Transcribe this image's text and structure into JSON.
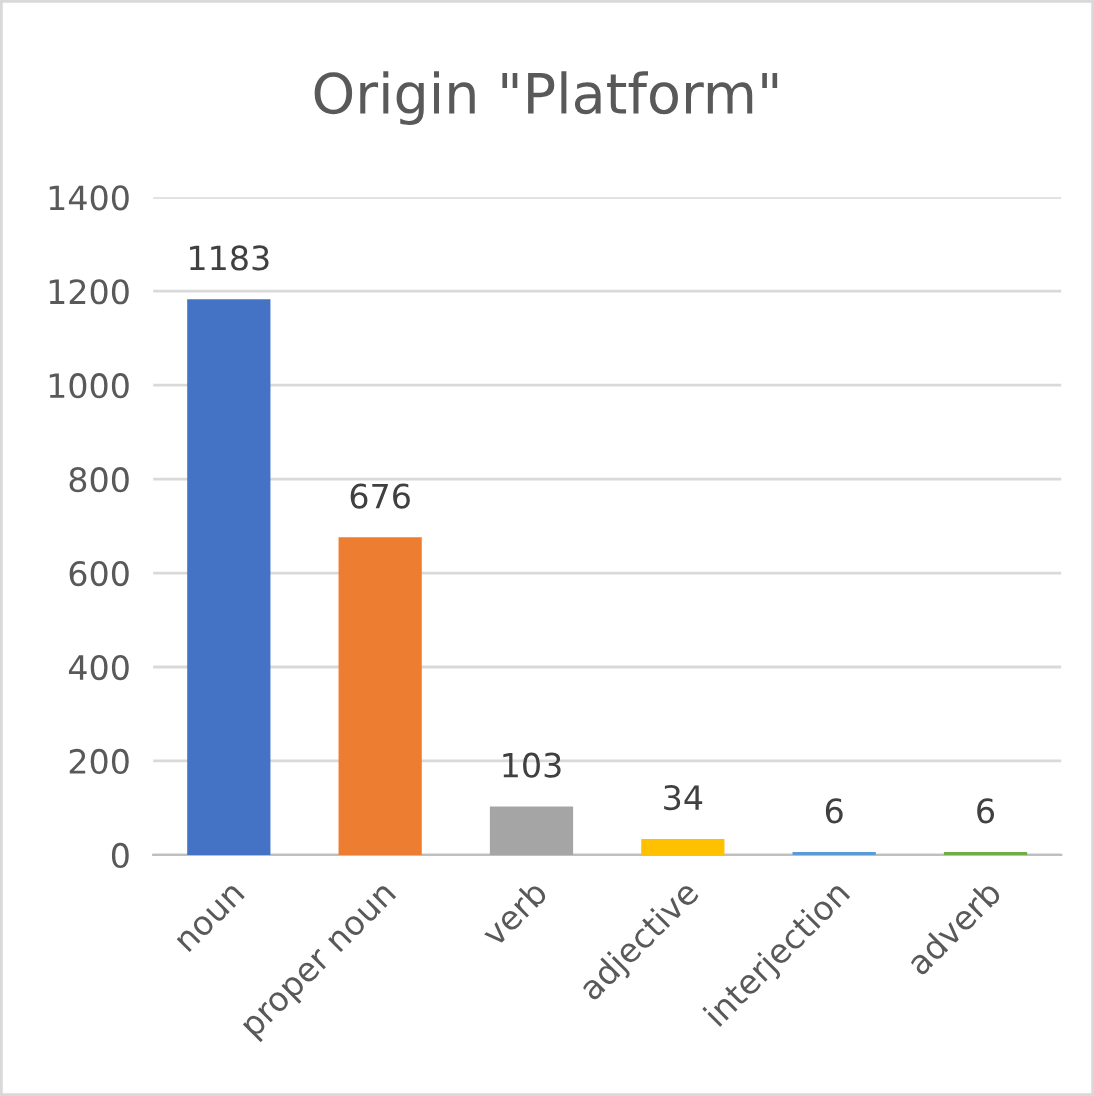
{
  "chart_data": {
    "type": "bar",
    "title": "Origin \"Platform\"",
    "categories": [
      "noun",
      "proper noun",
      "verb",
      "adjective",
      "interjection",
      "adverb"
    ],
    "values": [
      1183,
      676,
      103,
      34,
      6,
      6
    ],
    "colors": [
      "#4472c4",
      "#ed7d31",
      "#a5a5a5",
      "#ffc000",
      "#5b9bd5",
      "#70ad47"
    ],
    "ylim": [
      0,
      1400
    ],
    "yticks": [
      0,
      200,
      400,
      600,
      800,
      1000,
      1200,
      1400
    ],
    "grid": "y",
    "data_labels": true
  }
}
